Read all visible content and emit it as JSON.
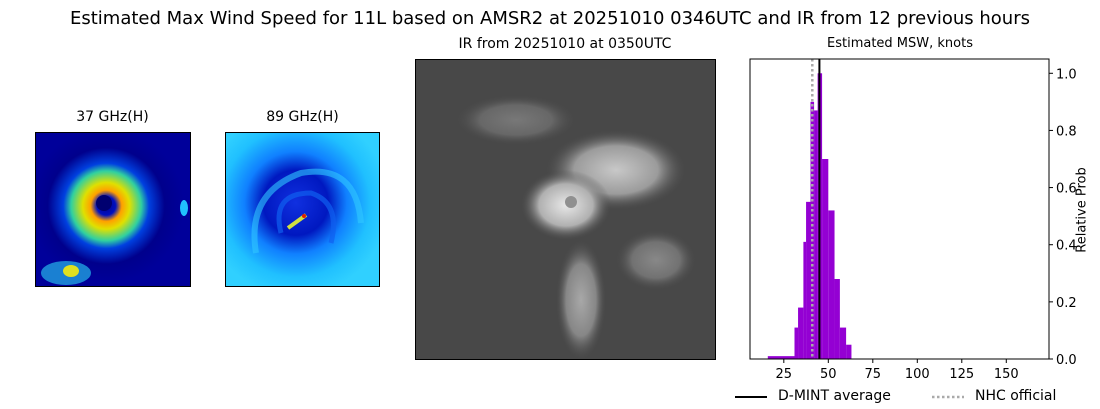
{
  "title": "Estimated Max Wind Speed for 11L based on AMSR2 at 20251010 0346UTC and IR from 12 previous hours",
  "panels": {
    "mw37": {
      "title": "37 GHz(H)"
    },
    "mw89": {
      "title": "89 GHz(H)"
    },
    "ir": {
      "title": "IR from 20251010 at 0350UTC"
    }
  },
  "chart_data": {
    "type": "bar",
    "title": "Estimated MSW, knots",
    "xlabel": "",
    "ylabel": "Relative Prob",
    "xlim": [
      6,
      174
    ],
    "ylim": [
      0,
      1.05
    ],
    "xticks": [
      "25",
      "50",
      "75",
      "100",
      "125",
      "150"
    ],
    "yticks": [
      "0.0",
      "0.2",
      "0.4",
      "0.6",
      "0.8",
      "1.0"
    ],
    "bar_color": "#9400d3",
    "bins": [
      {
        "x0": 16,
        "x1": 31,
        "value": 0.01
      },
      {
        "x0": 31,
        "x1": 33,
        "value": 0.11
      },
      {
        "x0": 33,
        "x1": 36,
        "value": 0.18
      },
      {
        "x0": 36,
        "x1": 37.5,
        "value": 0.41
      },
      {
        "x0": 37.5,
        "x1": 40,
        "value": 0.55
      },
      {
        "x0": 40,
        "x1": 42,
        "value": 0.9
      },
      {
        "x0": 42,
        "x1": 44,
        "value": 0.87
      },
      {
        "x0": 44,
        "x1": 46.5,
        "value": 1.0
      },
      {
        "x0": 46.5,
        "x1": 50,
        "value": 0.7
      },
      {
        "x0": 50,
        "x1": 53.5,
        "value": 0.52
      },
      {
        "x0": 53.5,
        "x1": 56.5,
        "value": 0.28
      },
      {
        "x0": 56.5,
        "x1": 60,
        "value": 0.11
      },
      {
        "x0": 60,
        "x1": 63,
        "value": 0.05
      }
    ],
    "lines": [
      {
        "name": "D-MINT average",
        "x": 45,
        "color": "#000000",
        "style": "solid"
      },
      {
        "name": "NHC official",
        "x": 41,
        "color": "#aaaaaa",
        "style": "dotted"
      }
    ],
    "legend": "bottom"
  }
}
